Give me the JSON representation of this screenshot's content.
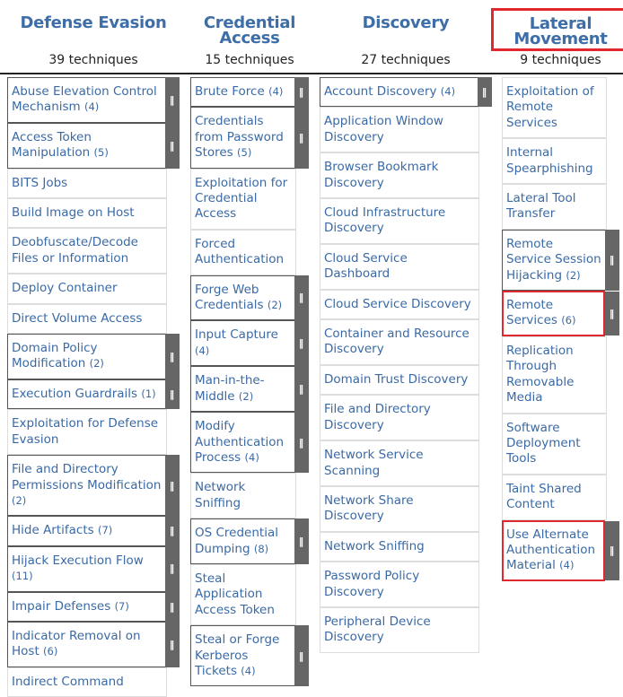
{
  "columns": [
    {
      "title": "Defense Evasion",
      "count": "39 techniques",
      "highlighted": false,
      "techniques": [
        {
          "name": "Abuse Elevation Control Mechanism",
          "sub": "(4)",
          "has_sub": true
        },
        {
          "name": "Access Token Manipulation",
          "sub": "(5)",
          "has_sub": true
        },
        {
          "name": "BITS Jobs"
        },
        {
          "name": "Build Image on Host"
        },
        {
          "name": "Deobfuscate/Decode Files or Information"
        },
        {
          "name": "Deploy Container"
        },
        {
          "name": "Direct Volume Access"
        },
        {
          "name": "Domain Policy Modification",
          "sub": "(2)",
          "has_sub": true
        },
        {
          "name": "Execution Guardrails",
          "sub": "(1)",
          "has_sub": true
        },
        {
          "name": "Exploitation for Defense Evasion"
        },
        {
          "name": "File and Directory Permissions Modification",
          "sub": "(2)",
          "has_sub": true
        },
        {
          "name": "Hide Artifacts",
          "sub": "(7)",
          "has_sub": true
        },
        {
          "name": "Hijack Execution Flow",
          "sub": "(11)",
          "has_sub": true
        },
        {
          "name": "Impair Defenses",
          "sub": "(7)",
          "has_sub": true
        },
        {
          "name": "Indicator Removal on Host",
          "sub": "(6)",
          "has_sub": true
        },
        {
          "name": "Indirect Command"
        }
      ]
    },
    {
      "title": "Credential Access",
      "count": "15 techniques",
      "highlighted": false,
      "techniques": [
        {
          "name": "Brute Force",
          "sub": "(4)",
          "has_sub": true
        },
        {
          "name": "Credentials from Password Stores",
          "sub": "(5)",
          "has_sub": true
        },
        {
          "name": "Exploitation for Credential Access"
        },
        {
          "name": "Forced Authentication"
        },
        {
          "name": "Forge Web Credentials",
          "sub": "(2)",
          "has_sub": true
        },
        {
          "name": "Input Capture",
          "sub": "(4)",
          "has_sub": true
        },
        {
          "name": "Man-in-the-Middle",
          "sub": "(2)",
          "has_sub": true
        },
        {
          "name": "Modify Authentication Process",
          "sub": "(4)",
          "has_sub": true
        },
        {
          "name": "Network Sniffing"
        },
        {
          "name": "OS Credential Dumping",
          "sub": "(8)",
          "has_sub": true
        },
        {
          "name": "Steal Application Access Token"
        },
        {
          "name": "Steal or Forge Kerberos Tickets",
          "sub": "(4)",
          "has_sub": true
        }
      ]
    },
    {
      "title": "Discovery",
      "count": "27 techniques",
      "highlighted": false,
      "techniques": [
        {
          "name": "Account Discovery",
          "sub": "(4)",
          "has_sub": true
        },
        {
          "name": "Application Window Discovery"
        },
        {
          "name": "Browser Bookmark Discovery"
        },
        {
          "name": "Cloud Infrastructure Discovery"
        },
        {
          "name": "Cloud Service Dashboard"
        },
        {
          "name": "Cloud Service Discovery"
        },
        {
          "name": "Container and Resource Discovery"
        },
        {
          "name": "Domain Trust Discovery"
        },
        {
          "name": "File and Directory Discovery"
        },
        {
          "name": "Network Service Scanning"
        },
        {
          "name": "Network Share Discovery"
        },
        {
          "name": "Network Sniffing"
        },
        {
          "name": "Password Policy Discovery"
        },
        {
          "name": "Peripheral Device Discovery"
        }
      ]
    },
    {
      "title": "Lateral Movement",
      "count": "9 techniques",
      "highlighted": true,
      "techniques": [
        {
          "name": "Exploitation of Remote Services"
        },
        {
          "name": "Internal Spearphishing"
        },
        {
          "name": "Lateral Tool Transfer"
        },
        {
          "name": "Remote Service Session Hijacking",
          "sub": "(2)",
          "has_sub": true
        },
        {
          "name": "Remote Services",
          "sub": "(6)",
          "has_sub": true,
          "highlighted": true
        },
        {
          "name": "Replication Through Removable Media"
        },
        {
          "name": "Software Deployment Tools"
        },
        {
          "name": "Taint Shared Content"
        },
        {
          "name": "Use Alternate Authentication Material",
          "sub": "(4)",
          "has_sub": true,
          "highlighted": true
        }
      ]
    }
  ]
}
